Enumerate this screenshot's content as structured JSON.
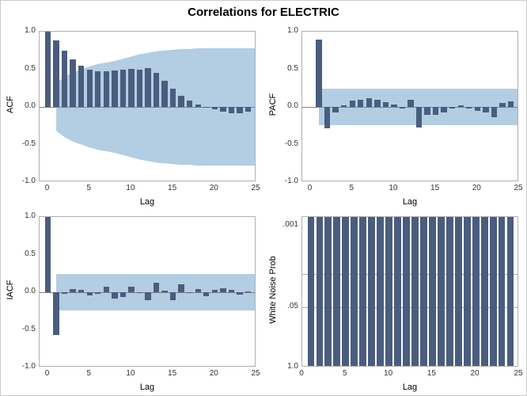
{
  "title": "Correlations for ELECTRIC",
  "layout": {
    "container_w": 666,
    "container_h": 500,
    "title_fontsize": 15,
    "label_fontsize": 11,
    "tick_fontsize": 10,
    "panel_gap_x": 8,
    "panel_gap_y": 8
  },
  "colors": {
    "background": "#ffffff",
    "bar": "#4a5d7e",
    "ci_band": "#b3cde3",
    "axis": "#b0b0b0",
    "tick": "#333333",
    "zero_line": "#808080",
    "ref_line": "#b0b0b0"
  },
  "panels": {
    "acf": {
      "ylabel": "ACF",
      "xlabel": "Lag",
      "xlim": [
        -1,
        25
      ],
      "ylim": [
        -1.0,
        1.0
      ],
      "yticks": [
        -1.0,
        -0.5,
        0.0,
        0.5,
        1.0
      ],
      "xticks": [
        0,
        5,
        10,
        15,
        20,
        25
      ],
      "bar_width": 0.7,
      "values": [
        1.0,
        0.88,
        0.75,
        0.63,
        0.55,
        0.5,
        0.47,
        0.47,
        0.48,
        0.5,
        0.51,
        0.5,
        0.52,
        0.45,
        0.35,
        0.24,
        0.15,
        0.08,
        0.03,
        0.0,
        -0.03,
        -0.06,
        -0.08,
        -0.08,
        -0.06
      ],
      "ci": [
        0.2,
        0.32,
        0.4,
        0.46,
        0.5,
        0.54,
        0.57,
        0.59,
        0.61,
        0.64,
        0.67,
        0.7,
        0.72,
        0.74,
        0.75,
        0.76,
        0.77,
        0.77,
        0.78,
        0.78,
        0.78,
        0.78,
        0.78,
        0.78,
        0.78
      ]
    },
    "pacf": {
      "ylabel": "PACF",
      "xlabel": "Lag",
      "xlim": [
        -1,
        25
      ],
      "ylim": [
        -1.0,
        1.0
      ],
      "yticks": [
        -1.0,
        -0.5,
        0.0,
        0.5,
        1.0
      ],
      "xticks": [
        0,
        5,
        10,
        15,
        20,
        25
      ],
      "bar_width": 0.7,
      "ci_const": 0.24,
      "ci_from_lag": 1,
      "values": [
        null,
        0.9,
        -0.28,
        -0.07,
        0.02,
        0.08,
        0.1,
        0.12,
        0.1,
        0.06,
        0.03,
        -0.02,
        0.1,
        -0.27,
        -0.1,
        -0.11,
        -0.07,
        -0.02,
        0.02,
        -0.02,
        -0.05,
        -0.07,
        -0.14,
        0.05,
        0.07
      ]
    },
    "iacf": {
      "ylabel": "IACF",
      "xlabel": "Lag",
      "xlim": [
        -1,
        25
      ],
      "ylim": [
        -1.0,
        1.0
      ],
      "yticks": [
        -1.0,
        -0.5,
        0.0,
        0.5,
        1.0
      ],
      "xticks": [
        0,
        5,
        10,
        15,
        20,
        25
      ],
      "bar_width": 0.7,
      "ci_const": 0.24,
      "ci_from_lag": 1,
      "values": [
        1.0,
        -0.57,
        -0.02,
        0.04,
        0.03,
        -0.04,
        -0.02,
        0.07,
        -0.08,
        -0.06,
        0.07,
        0.0,
        -0.11,
        0.13,
        0.02,
        -0.1,
        0.11,
        -0.01,
        0.04,
        -0.05,
        0.03,
        0.05,
        0.03,
        -0.03,
        0.01
      ]
    },
    "wn": {
      "ylabel": "White Noise Prob",
      "xlabel": "Lag",
      "xlim": [
        0,
        25
      ],
      "xticks": [
        0,
        5,
        10,
        15,
        20,
        25
      ],
      "yticks": [
        0.001,
        0.01,
        0.05,
        1.0
      ],
      "ytick_labels": [
        ".001",
        "",
        ".05",
        "1.0"
      ],
      "ytick_heights": [
        0.94,
        0.62,
        0.4,
        0.0
      ],
      "ref_lines": [
        0.62,
        0.4
      ],
      "bar_width": 0.8,
      "values": [
        null,
        1,
        1,
        1,
        1,
        1,
        1,
        1,
        1,
        1,
        1,
        1,
        1,
        1,
        1,
        1,
        1,
        1,
        1,
        1,
        1,
        1,
        1,
        1,
        1
      ]
    }
  }
}
